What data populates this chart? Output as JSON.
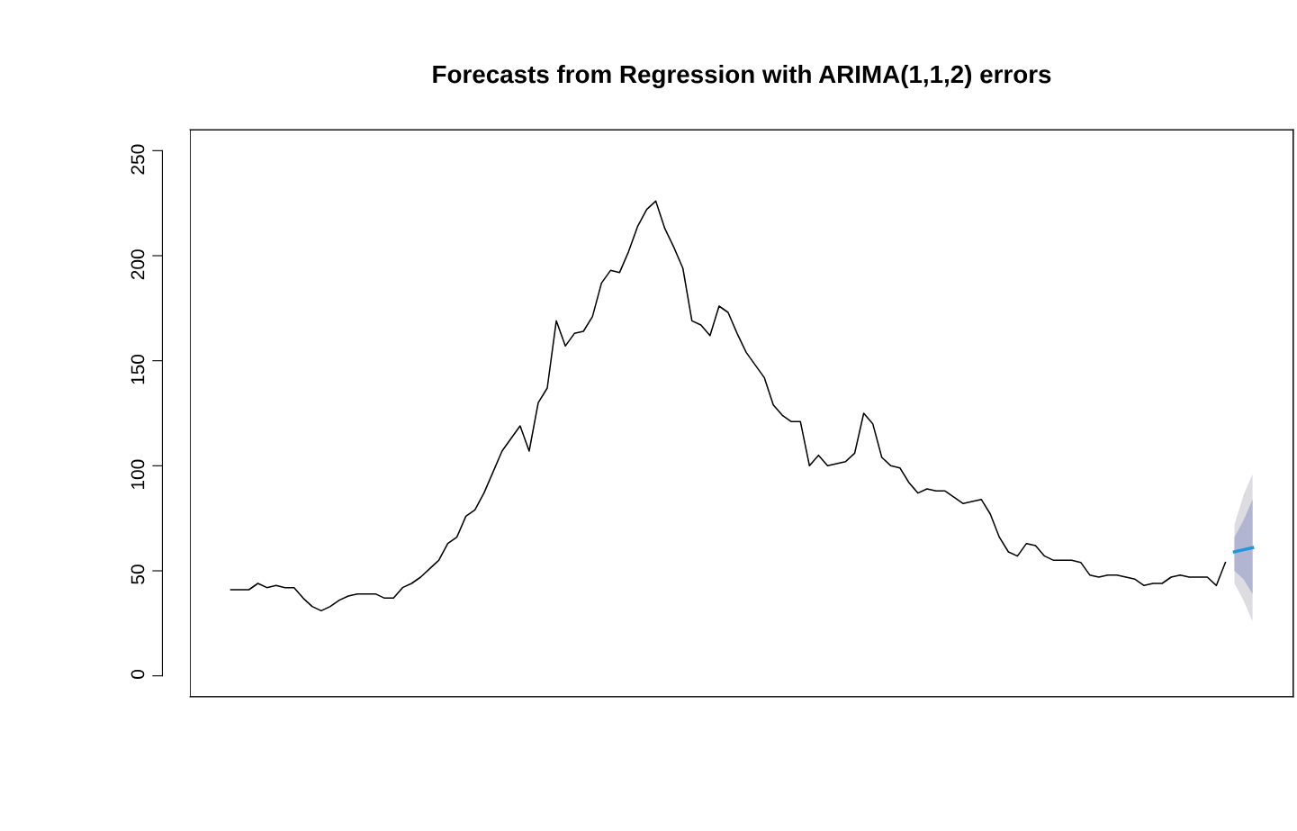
{
  "chart_data": {
    "type": "line",
    "title": "Forecasts from Regression with ARIMA(1,1,2) errors",
    "categories": [
      null,
      null,
      null,
      null,
      null,
      null,
      null,
      null,
      null,
      null,
      null,
      null,
      null,
      null,
      null,
      null,
      null,
      null,
      null,
      null,
      null,
      null,
      null,
      null,
      null,
      null,
      null,
      null,
      null,
      null,
      null,
      null,
      null,
      null,
      null,
      null,
      null,
      null,
      null,
      null,
      null,
      null,
      null,
      null,
      null,
      null,
      null,
      null,
      null,
      null,
      null,
      null,
      null,
      null,
      null,
      null,
      null,
      null,
      null,
      null,
      null,
      null,
      null,
      null,
      null,
      null,
      null,
      null,
      null,
      null,
      null,
      null,
      null,
      null,
      null,
      null,
      null,
      null,
      null,
      null,
      null,
      null,
      null,
      null,
      null,
      null,
      null,
      null,
      null,
      null,
      null,
      null,
      null,
      null,
      null,
      null,
      null,
      null,
      null,
      null,
      null,
      null,
      null,
      null,
      null,
      null,
      null,
      null,
      null,
      null,
      null,
      null,
      null,
      null
    ],
    "series": [
      {
        "color": "#000000",
        "values": [
          41,
          41,
          41,
          44,
          42,
          43,
          42,
          42,
          37,
          33,
          31,
          33,
          36,
          38,
          39,
          39,
          39,
          37,
          37,
          42,
          44,
          47,
          51,
          55,
          63,
          66,
          76,
          79,
          87,
          97,
          107,
          113,
          119,
          107,
          130,
          137,
          169,
          157,
          163,
          164,
          171,
          187,
          193,
          192,
          202,
          214,
          222,
          226,
          213,
          204,
          194,
          169,
          167,
          162,
          176,
          173,
          163,
          154,
          148,
          142,
          129,
          124,
          121,
          121,
          100,
          105,
          100,
          101,
          102,
          106,
          125,
          120,
          104,
          100,
          99,
          92,
          87,
          89,
          88,
          88,
          85,
          82,
          83,
          84,
          77,
          66,
          59,
          57,
          63,
          62,
          57,
          55,
          55,
          55,
          54,
          48,
          47,
          48,
          48,
          47,
          46,
          43,
          44,
          44,
          47,
          48,
          47,
          47,
          47,
          43,
          54,
          null,
          null,
          null
        ]
      },
      {
        "color": "#dcdce1",
        "values": [
          null,
          null,
          null,
          null,
          null,
          null,
          null,
          null,
          null,
          null,
          null,
          null,
          null,
          null,
          null,
          null,
          null,
          null,
          null,
          null,
          null,
          null,
          null,
          null,
          null,
          null,
          null,
          null,
          null,
          null,
          null,
          null,
          null,
          null,
          null,
          null,
          null,
          null,
          null,
          null,
          null,
          null,
          null,
          null,
          null,
          null,
          null,
          null,
          null,
          null,
          null,
          null,
          null,
          null,
          null,
          null,
          null,
          null,
          null,
          null,
          null,
          null,
          null,
          null,
          null,
          null,
          null,
          null,
          null,
          null,
          null,
          null,
          null,
          null,
          null,
          null,
          null,
          null,
          null,
          null,
          null,
          null,
          null,
          null,
          null,
          null,
          null,
          null,
          null,
          null,
          null,
          null,
          null,
          null,
          null,
          null,
          null,
          null,
          null,
          null,
          null,
          null,
          null,
          null,
          null,
          null,
          null,
          null,
          null,
          null,
          null,
          null,
          null,
          null
        ],
        "lower": [
          null,
          null,
          null,
          null,
          null,
          null,
          null,
          null,
          null,
          null,
          null,
          null,
          null,
          null,
          null,
          null,
          null,
          null,
          null,
          null,
          null,
          null,
          null,
          null,
          null,
          null,
          null,
          null,
          null,
          null,
          null,
          null,
          null,
          null,
          null,
          null,
          null,
          null,
          null,
          null,
          null,
          null,
          null,
          null,
          null,
          null,
          null,
          null,
          null,
          null,
          null,
          null,
          null,
          null,
          null,
          null,
          null,
          null,
          null,
          null,
          null,
          null,
          null,
          null,
          null,
          null,
          null,
          null,
          null,
          null,
          null,
          null,
          null,
          null,
          null,
          null,
          null,
          null,
          null,
          null,
          null,
          null,
          null,
          null,
          null,
          null,
          null,
          null,
          null,
          null,
          null,
          null,
          null,
          null,
          null,
          null,
          null,
          null,
          null,
          null,
          null,
          null,
          null,
          null,
          null,
          null,
          null,
          null,
          null,
          null,
          null,
          44,
          36,
          26
        ],
        "upper": [
          null,
          null,
          null,
          null,
          null,
          null,
          null,
          null,
          null,
          null,
          null,
          null,
          null,
          null,
          null,
          null,
          null,
          null,
          null,
          null,
          null,
          null,
          null,
          null,
          null,
          null,
          null,
          null,
          null,
          null,
          null,
          null,
          null,
          null,
          null,
          null,
          null,
          null,
          null,
          null,
          null,
          null,
          null,
          null,
          null,
          null,
          null,
          null,
          null,
          null,
          null,
          null,
          null,
          null,
          null,
          null,
          null,
          null,
          null,
          null,
          null,
          null,
          null,
          null,
          null,
          null,
          null,
          null,
          null,
          null,
          null,
          null,
          null,
          null,
          null,
          null,
          null,
          null,
          null,
          null,
          null,
          null,
          null,
          null,
          null,
          null,
          null,
          null,
          null,
          null,
          null,
          null,
          null,
          null,
          null,
          null,
          null,
          null,
          null,
          null,
          null,
          null,
          null,
          null,
          null,
          null,
          null,
          null,
          null,
          null,
          null,
          72,
          86,
          96
        ]
      },
      {
        "color": "#b1b5d2",
        "values": [
          null,
          null,
          null,
          null,
          null,
          null,
          null,
          null,
          null,
          null,
          null,
          null,
          null,
          null,
          null,
          null,
          null,
          null,
          null,
          null,
          null,
          null,
          null,
          null,
          null,
          null,
          null,
          null,
          null,
          null,
          null,
          null,
          null,
          null,
          null,
          null,
          null,
          null,
          null,
          null,
          null,
          null,
          null,
          null,
          null,
          null,
          null,
          null,
          null,
          null,
          null,
          null,
          null,
          null,
          null,
          null,
          null,
          null,
          null,
          null,
          null,
          null,
          null,
          null,
          null,
          null,
          null,
          null,
          null,
          null,
          null,
          null,
          null,
          null,
          null,
          null,
          null,
          null,
          null,
          null,
          null,
          null,
          null,
          null,
          null,
          null,
          null,
          null,
          null,
          null,
          null,
          null,
          null,
          null,
          null,
          null,
          null,
          null,
          null,
          null,
          null,
          null,
          null,
          null,
          null,
          null,
          null,
          null,
          null,
          null,
          null,
          null,
          null,
          null
        ],
        "lower": [
          null,
          null,
          null,
          null,
          null,
          null,
          null,
          null,
          null,
          null,
          null,
          null,
          null,
          null,
          null,
          null,
          null,
          null,
          null,
          null,
          null,
          null,
          null,
          null,
          null,
          null,
          null,
          null,
          null,
          null,
          null,
          null,
          null,
          null,
          null,
          null,
          null,
          null,
          null,
          null,
          null,
          null,
          null,
          null,
          null,
          null,
          null,
          null,
          null,
          null,
          null,
          null,
          null,
          null,
          null,
          null,
          null,
          null,
          null,
          null,
          null,
          null,
          null,
          null,
          null,
          null,
          null,
          null,
          null,
          null,
          null,
          null,
          null,
          null,
          null,
          null,
          null,
          null,
          null,
          null,
          null,
          null,
          null,
          null,
          null,
          null,
          null,
          null,
          null,
          null,
          null,
          null,
          null,
          null,
          null,
          null,
          null,
          null,
          null,
          null,
          null,
          null,
          null,
          null,
          null,
          null,
          null,
          null,
          null,
          null,
          null,
          50,
          46,
          39
        ],
        "upper": [
          null,
          null,
          null,
          null,
          null,
          null,
          null,
          null,
          null,
          null,
          null,
          null,
          null,
          null,
          null,
          null,
          null,
          null,
          null,
          null,
          null,
          null,
          null,
          null,
          null,
          null,
          null,
          null,
          null,
          null,
          null,
          null,
          null,
          null,
          null,
          null,
          null,
          null,
          null,
          null,
          null,
          null,
          null,
          null,
          null,
          null,
          null,
          null,
          null,
          null,
          null,
          null,
          null,
          null,
          null,
          null,
          null,
          null,
          null,
          null,
          null,
          null,
          null,
          null,
          null,
          null,
          null,
          null,
          null,
          null,
          null,
          null,
          null,
          null,
          null,
          null,
          null,
          null,
          null,
          null,
          null,
          null,
          null,
          null,
          null,
          null,
          null,
          null,
          null,
          null,
          null,
          null,
          null,
          null,
          null,
          null,
          null,
          null,
          null,
          null,
          null,
          null,
          null,
          null,
          null,
          null,
          null,
          null,
          null,
          null,
          null,
          66,
          74,
          84
        ]
      },
      {
        "color": "#2196e0",
        "values": [
          null,
          null,
          null,
          null,
          null,
          null,
          null,
          null,
          null,
          null,
          null,
          null,
          null,
          null,
          null,
          null,
          null,
          null,
          null,
          null,
          null,
          null,
          null,
          null,
          null,
          null,
          null,
          null,
          null,
          null,
          null,
          null,
          null,
          null,
          null,
          null,
          null,
          null,
          null,
          null,
          null,
          null,
          null,
          null,
          null,
          null,
          null,
          null,
          null,
          null,
          null,
          null,
          null,
          null,
          null,
          null,
          null,
          null,
          null,
          null,
          null,
          null,
          null,
          null,
          null,
          null,
          null,
          null,
          null,
          null,
          null,
          null,
          null,
          null,
          null,
          null,
          null,
          null,
          null,
          null,
          null,
          null,
          null,
          null,
          null,
          null,
          null,
          null,
          null,
          null,
          null,
          null,
          null,
          null,
          null,
          null,
          null,
          null,
          null,
          null,
          null,
          null,
          null,
          null,
          null,
          null,
          null,
          null,
          null,
          null,
          null,
          59,
          60,
          61
        ]
      }
    ],
    "ylim": [
      -10,
      260
    ],
    "yticks": [
      0,
      50,
      100,
      150,
      200,
      250
    ],
    "tick_labels": "y",
    "grid": false,
    "legend": false
  }
}
